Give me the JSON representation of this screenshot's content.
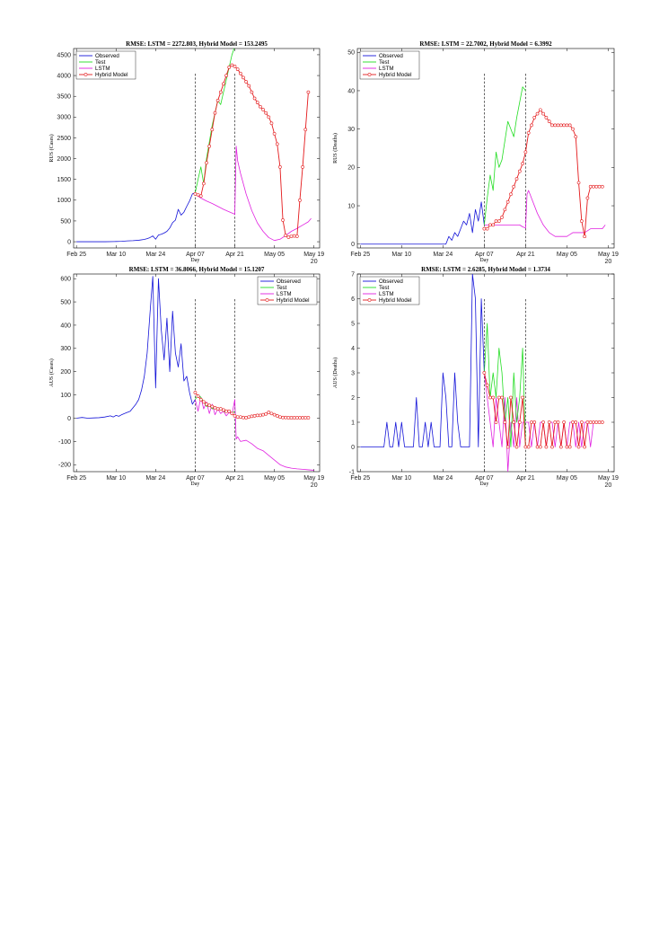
{
  "colors": {
    "observed": "#1414d8",
    "test": "#22dd22",
    "lstm": "#e020e0",
    "hybrid": "#e41a1c"
  },
  "x_tick_labels": [
    "Feb 25",
    "Mar 10",
    "Mar 24",
    "Apr 07",
    "Apr 21",
    "May 05",
    "May 19"
  ],
  "x_tick_days": [
    0,
    14,
    28,
    42,
    56,
    70,
    84
  ],
  "x_tick_year": "20",
  "x_tick_year_under": "May 19",
  "x_range": [
    -1,
    86
  ],
  "chart_data": [
    {
      "type": "line",
      "title": "RMSE: LSTM = 2272.803, Hybrid Model = 153.2495",
      "xlabel": "Day",
      "ylabel": "RUS (Cases)",
      "ylim": [
        -150,
        4650
      ],
      "yticks": [
        0,
        500,
        1000,
        1500,
        2000,
        2500,
        3000,
        3500,
        4000,
        4500
      ],
      "vlines": [
        42,
        56
      ],
      "legend": {
        "position": "top-left",
        "entries": [
          "Observed",
          "Test",
          "LSTM",
          "Hybrid Model"
        ]
      },
      "series": [
        {
          "name": "Observed",
          "kind": "observed",
          "x": [
            0,
            10,
            14,
            16,
            18,
            20,
            22,
            24,
            25,
            26,
            27,
            28,
            29,
            30,
            31,
            32,
            33,
            34,
            35,
            36,
            37,
            38,
            39,
            40,
            41,
            42
          ],
          "y": [
            0,
            0,
            5,
            10,
            20,
            25,
            35,
            55,
            75,
            100,
            140,
            60,
            160,
            180,
            210,
            250,
            330,
            460,
            520,
            780,
            640,
            710,
            850,
            980,
            1150,
            1180
          ]
        },
        {
          "name": "Test",
          "kind": "test",
          "x": [
            42,
            43,
            44,
            45,
            46,
            47,
            48,
            49,
            50,
            51,
            52,
            53,
            54,
            55,
            56,
            57
          ],
          "y": [
            1180,
            1500,
            1800,
            1400,
            2000,
            2400,
            2800,
            3100,
            3400,
            3300,
            3600,
            3900,
            4200,
            4500,
            4700,
            5100
          ]
        },
        {
          "name": "LSTM",
          "kind": "lstm",
          "x": [
            42,
            44,
            46,
            48,
            50,
            52,
            54,
            55,
            56,
            56.5,
            57,
            58,
            60,
            62,
            64,
            66,
            68,
            70,
            72,
            74,
            76,
            78,
            80,
            82,
            83
          ],
          "y": [
            1150,
            1050,
            980,
            920,
            850,
            780,
            720,
            690,
            660,
            2300,
            1950,
            1650,
            1150,
            750,
            450,
            250,
            100,
            30,
            60,
            150,
            250,
            320,
            400,
            480,
            560
          ]
        },
        {
          "name": "Hybrid Model",
          "kind": "hybrid",
          "markers": true,
          "x": [
            42,
            43,
            44,
            45,
            46,
            47,
            48,
            49,
            50,
            51,
            52,
            53,
            54,
            55,
            56,
            57,
            58,
            59,
            60,
            61,
            62,
            63,
            64,
            65,
            66,
            67,
            68,
            69,
            70,
            71,
            72,
            73,
            74,
            75,
            76,
            77,
            78,
            79,
            80,
            81,
            82
          ],
          "y": [
            1150,
            1130,
            1100,
            1400,
            1900,
            2300,
            2700,
            3100,
            3400,
            3600,
            3800,
            4000,
            4200,
            4250,
            4220,
            4150,
            4050,
            3950,
            3850,
            3750,
            3600,
            3450,
            3350,
            3250,
            3180,
            3100,
            3000,
            2850,
            2600,
            2350,
            1800,
            520,
            150,
            110,
            130,
            140,
            130,
            1000,
            1800,
            2700,
            3600
          ]
        }
      ]
    },
    {
      "type": "line",
      "title": "RMSE: LSTM = 22.7002, Hybrid Model = 6.3992",
      "xlabel": "Day",
      "ylabel": "RUS (Deaths)",
      "ylim": [
        -1,
        51
      ],
      "yticks": [
        0,
        10,
        20,
        30,
        40,
        50
      ],
      "vlines": [
        42,
        56
      ],
      "legend": {
        "position": "top-left",
        "entries": [
          "Observed",
          "Test",
          "LSTM",
          "Hybrid Model"
        ]
      },
      "series": [
        {
          "name": "Observed",
          "kind": "observed",
          "x": [
            0,
            29,
            30,
            31,
            32,
            33,
            34,
            35,
            36,
            37,
            38,
            39,
            40,
            41,
            42
          ],
          "y": [
            0,
            0,
            2,
            1,
            3,
            2,
            4,
            6,
            5,
            8,
            3,
            9,
            6,
            11,
            5
          ]
        },
        {
          "name": "Test",
          "kind": "test",
          "x": [
            42,
            43,
            44,
            45,
            46,
            47,
            48,
            49,
            50,
            51,
            52,
            53,
            54,
            55,
            56
          ],
          "y": [
            5,
            12,
            18,
            14,
            24,
            20,
            22,
            27,
            32,
            30,
            28,
            33,
            37,
            41,
            40
          ]
        },
        {
          "name": "LSTM",
          "kind": "lstm",
          "x": [
            42,
            44,
            46,
            48,
            50,
            52,
            54,
            55,
            56,
            56.5,
            57,
            58,
            60,
            62,
            64,
            66,
            68,
            70,
            72,
            74,
            76,
            78,
            80,
            82,
            83
          ],
          "y": [
            5,
            5,
            5,
            5,
            5,
            5,
            5,
            4.5,
            4.2,
            13,
            14,
            12,
            8,
            5,
            3,
            2,
            2,
            2,
            3,
            3,
            3,
            4,
            4,
            4,
            5
          ]
        },
        {
          "name": "Hybrid Model",
          "kind": "hybrid",
          "markers": true,
          "x": [
            42,
            43,
            44,
            45,
            46,
            47,
            48,
            49,
            50,
            51,
            52,
            53,
            54,
            55,
            56,
            57,
            58,
            59,
            60,
            61,
            62,
            63,
            64,
            65,
            66,
            67,
            68,
            69,
            70,
            71,
            72,
            73,
            74,
            75,
            76,
            77,
            78,
            79,
            80,
            81,
            82
          ],
          "y": [
            4,
            4,
            5,
            5,
            6,
            6,
            7,
            9,
            11,
            13,
            15,
            17,
            19,
            21,
            24,
            29,
            31,
            33,
            34,
            35,
            34,
            33,
            32,
            31,
            31,
            31,
            31,
            31,
            31,
            31,
            30,
            28,
            16,
            6,
            2,
            12,
            15,
            15,
            15,
            15,
            15
          ]
        }
      ]
    },
    {
      "type": "line",
      "title": "RMSE: LSTM = 36.8066, Hybrid Model = 15.1207",
      "xlabel": "Day",
      "ylabel": "AUS (Cases)",
      "ylim": [
        -230,
        620
      ],
      "yticks": [
        -200,
        -100,
        0,
        100,
        200,
        300,
        400,
        500,
        600
      ],
      "vlines": [
        42,
        56
      ],
      "legend": {
        "position": "top-right",
        "entries": [
          "Observed",
          "Test",
          "LSTM",
          "Hybrid Model"
        ]
      },
      "series": [
        {
          "name": "Observed",
          "kind": "observed",
          "x": [
            0,
            2,
            4,
            6,
            8,
            10,
            12,
            13,
            14,
            15,
            16,
            17,
            18,
            19,
            20,
            21,
            22,
            23,
            24,
            25,
            26,
            27,
            28,
            29,
            30,
            31,
            32,
            33,
            34,
            35,
            36,
            37,
            38,
            39,
            40,
            41,
            42
          ],
          "y": [
            0,
            3,
            0,
            1,
            2,
            5,
            10,
            5,
            12,
            8,
            15,
            20,
            25,
            30,
            45,
            60,
            80,
            120,
            180,
            280,
            450,
            610,
            130,
            600,
            380,
            250,
            430,
            200,
            460,
            280,
            220,
            320,
            160,
            180,
            110,
            60,
            80
          ]
        },
        {
          "name": "Test",
          "kind": "test",
          "x": [
            42,
            43,
            44,
            45,
            46,
            47,
            48,
            49,
            50,
            51,
            52,
            53,
            54,
            55,
            56
          ],
          "y": [
            80,
            100,
            90,
            70,
            50,
            55,
            40,
            45,
            35,
            40,
            30,
            25,
            35,
            20,
            30
          ]
        },
        {
          "name": "LSTM",
          "kind": "lstm",
          "x": [
            42,
            43,
            44,
            45,
            46,
            47,
            48,
            49,
            50,
            51,
            52,
            53,
            54,
            55,
            56,
            56.5,
            57,
            58,
            60,
            62,
            64,
            66,
            68,
            70,
            72,
            74,
            76,
            78,
            80,
            82,
            84
          ],
          "y": [
            80,
            30,
            90,
            40,
            70,
            20,
            60,
            15,
            40,
            20,
            30,
            10,
            25,
            15,
            80,
            -90,
            -80,
            -100,
            -95,
            -110,
            -130,
            -140,
            -160,
            -180,
            -200,
            -210,
            -215,
            -218,
            -220,
            -222,
            -224
          ]
        },
        {
          "name": "Hybrid Model",
          "kind": "hybrid",
          "markers": true,
          "x": [
            42,
            43,
            44,
            45,
            46,
            47,
            48,
            49,
            50,
            51,
            52,
            53,
            54,
            55,
            56,
            57,
            58,
            59,
            60,
            61,
            62,
            63,
            64,
            65,
            66,
            67,
            68,
            69,
            70,
            71,
            72,
            73,
            74,
            75,
            76,
            77,
            78,
            79,
            80,
            81,
            82
          ],
          "y": [
            110,
            95,
            80,
            70,
            60,
            55,
            50,
            45,
            40,
            40,
            35,
            30,
            30,
            20,
            10,
            5,
            5,
            3,
            2,
            5,
            8,
            10,
            12,
            12,
            15,
            18,
            25,
            20,
            15,
            10,
            5,
            3,
            3,
            2,
            2,
            2,
            2,
            2,
            2,
            2,
            2
          ]
        }
      ]
    },
    {
      "type": "line",
      "title": "RMSE: LSTM = 2.6285, Hybrid Model = 1.3734",
      "xlabel": "Day",
      "ylabel": "AUS (Deaths)",
      "ylim": [
        -1,
        7
      ],
      "yticks": [
        -1,
        0,
        1,
        2,
        3,
        4,
        5,
        6,
        7
      ],
      "vlines": [
        42,
        56
      ],
      "legend": {
        "position": "top-left",
        "entries": [
          "Observed",
          "Test",
          "LSTM",
          "Hybrid Model"
        ]
      },
      "series": [
        {
          "name": "Observed",
          "kind": "observed",
          "x": [
            0,
            8,
            9,
            10,
            11,
            12,
            13,
            14,
            15,
            16,
            17,
            18,
            19,
            20,
            21,
            22,
            23,
            24,
            25,
            26,
            27,
            28,
            29,
            30,
            31,
            32,
            33,
            34,
            35,
            36,
            37,
            38,
            39,
            40,
            41,
            42
          ],
          "y": [
            0,
            0,
            1,
            0,
            0,
            1,
            0,
            1,
            0,
            0,
            0,
            0,
            2,
            0,
            0,
            1,
            0,
            1,
            0,
            0,
            0,
            3,
            2,
            0,
            0,
            3,
            1,
            0,
            0,
            0,
            0,
            7,
            6,
            0,
            6,
            3
          ]
        },
        {
          "name": "Test",
          "kind": "test",
          "x": [
            42,
            43,
            44,
            45,
            46,
            47,
            48,
            49,
            50,
            51,
            52,
            53,
            54,
            55,
            56
          ],
          "y": [
            3,
            5,
            2,
            3,
            2,
            4,
            3,
            1,
            2,
            0,
            3,
            1,
            2,
            4,
            0
          ]
        },
        {
          "name": "LSTM",
          "kind": "lstm",
          "x": [
            42,
            43,
            44,
            45,
            46,
            47,
            48,
            49,
            50,
            51,
            52,
            53,
            54,
            55,
            56,
            57,
            58,
            59,
            60,
            61,
            62,
            63,
            64,
            65,
            66,
            67,
            68,
            69,
            70,
            71,
            72,
            73,
            74,
            75,
            76,
            77,
            78,
            79,
            80,
            81,
            82
          ],
          "y": [
            3,
            2,
            1,
            0,
            2,
            1,
            0,
            2,
            -1,
            1,
            0,
            2,
            0,
            1,
            1,
            1,
            0,
            1,
            0,
            1,
            1,
            0,
            1,
            1,
            0,
            1,
            0,
            1,
            0,
            1,
            1,
            0,
            1,
            0,
            1,
            1,
            0,
            1,
            1,
            1,
            1
          ]
        },
        {
          "name": "Hybrid Model",
          "kind": "hybrid",
          "markers": true,
          "x": [
            42,
            43,
            44,
            45,
            46,
            47,
            48,
            49,
            50,
            51,
            52,
            53,
            54,
            55,
            56,
            57,
            58,
            59,
            60,
            61,
            62,
            63,
            64,
            65,
            66,
            67,
            68,
            69,
            70,
            71,
            72,
            73,
            74,
            75,
            76,
            77,
            78,
            79,
            80,
            81,
            82
          ],
          "y": [
            3,
            2.5,
            2,
            2,
            1,
            2,
            2,
            1,
            0,
            2,
            1,
            0,
            1,
            2,
            0,
            0,
            1,
            1,
            0,
            0,
            1,
            0,
            1,
            0,
            1,
            1,
            0,
            1,
            0,
            0,
            1,
            1,
            0,
            1,
            0,
            1,
            1,
            1,
            1,
            1,
            1
          ]
        }
      ]
    }
  ]
}
